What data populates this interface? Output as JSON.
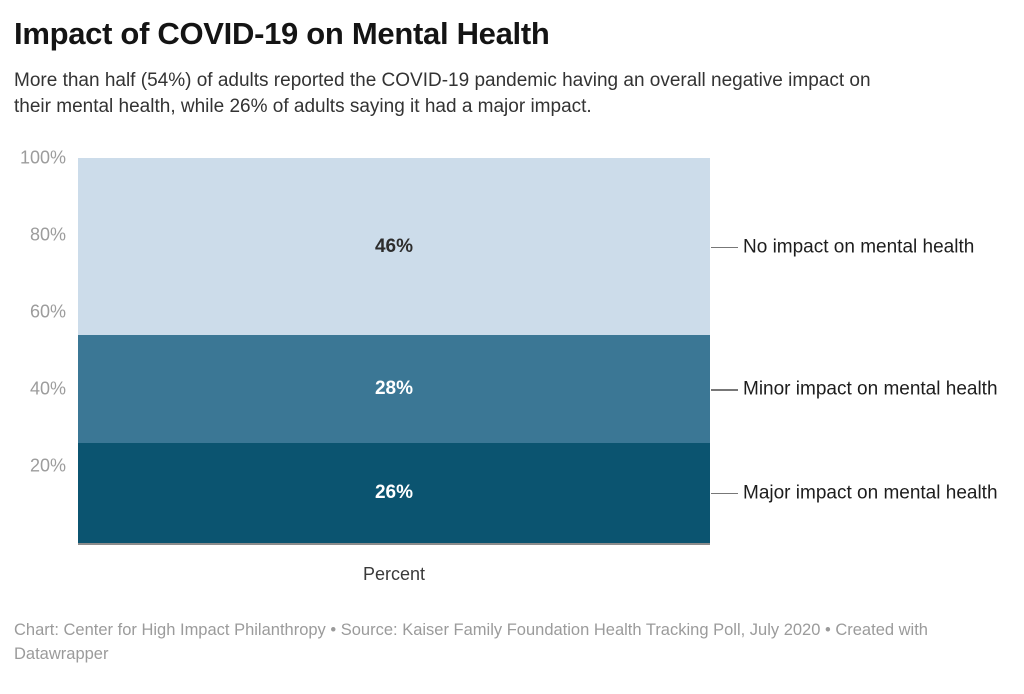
{
  "header": {
    "title": "Impact of COVID-19 on Mental Health",
    "subtitle": "More than half (54%) of adults reported the COVID-19 pandemic having an overall negative impact on their mental health, while 26% of adults saying it had a major impact."
  },
  "chart_data": {
    "type": "bar",
    "variant": "single-stacked-column",
    "title": "Impact of COVID-19 on Mental Health",
    "xlabel": "Percent",
    "ylabel": "",
    "ylim": [
      0,
      100
    ],
    "yticks": [
      100,
      80,
      60,
      40,
      20
    ],
    "ytick_suffix": "%",
    "grid": false,
    "legend_position": "right-annotations",
    "categories": [
      "Percent"
    ],
    "stack_order": "top-to-bottom",
    "series": [
      {
        "name": "No impact on mental health",
        "values": [
          46
        ],
        "data_label": "46%",
        "color": "#ccdcea",
        "label_color": "#2d2d2d"
      },
      {
        "name": "Minor impact on mental health",
        "values": [
          28
        ],
        "data_label": "28%",
        "color": "#3b7795",
        "label_color": "#ffffff"
      },
      {
        "name": "Major impact on mental health",
        "values": [
          26
        ],
        "data_label": "26%",
        "color": "#0b5470",
        "label_color": "#ffffff"
      }
    ]
  },
  "footer": {
    "text": "Chart: Center for High Impact Philanthropy • Source: Kaiser Family Foundation Health Tracking Poll, July 2020 • Created with Datawrapper"
  },
  "colors": {
    "background": "#ffffff",
    "axis_tick_text": "#9c9c9c",
    "baseline": "#8c8c8c",
    "connector": "#777777",
    "annotation_text": "#1d1d1d",
    "title_text": "#141414",
    "subtitle_text": "#333333",
    "footer_text": "#9b9b9b"
  }
}
